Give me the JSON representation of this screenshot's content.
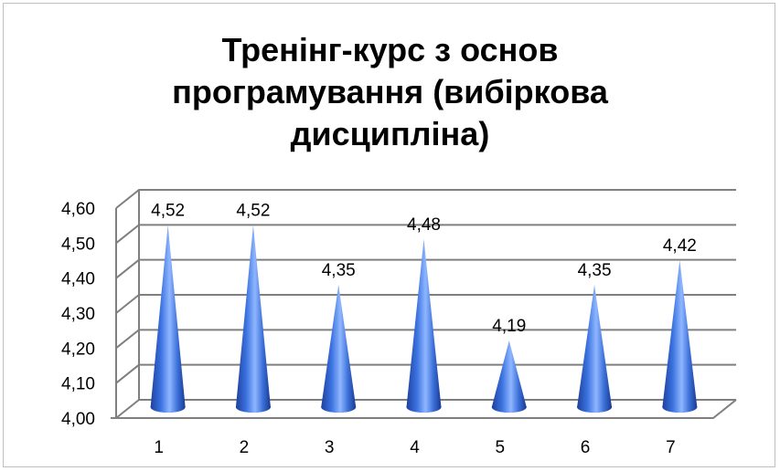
{
  "chart_data": {
    "type": "bar",
    "shape": "cone-3d",
    "title_lines": [
      "Тренінг-курс з основ",
      "програмування (вибіркова",
      "дисципліна)"
    ],
    "categories": [
      "1",
      "2",
      "3",
      "4",
      "5",
      "6",
      "7"
    ],
    "values": [
      4.52,
      4.52,
      4.35,
      4.48,
      4.19,
      4.35,
      4.42
    ],
    "data_labels": [
      "4,52",
      "4,52",
      "4,35",
      "4,48",
      "4,19",
      "4,35",
      "4,42"
    ],
    "ylim": [
      4.0,
      4.6
    ],
    "yticks": [
      "4,00",
      "4,10",
      "4,20",
      "4,30",
      "4,40",
      "4,50",
      "4,60"
    ],
    "grid": true,
    "legend": "none",
    "colors": {
      "cone": "#3a74e6",
      "cone_dark": "#1e3f9e",
      "grid": "#7f7f7f"
    }
  }
}
